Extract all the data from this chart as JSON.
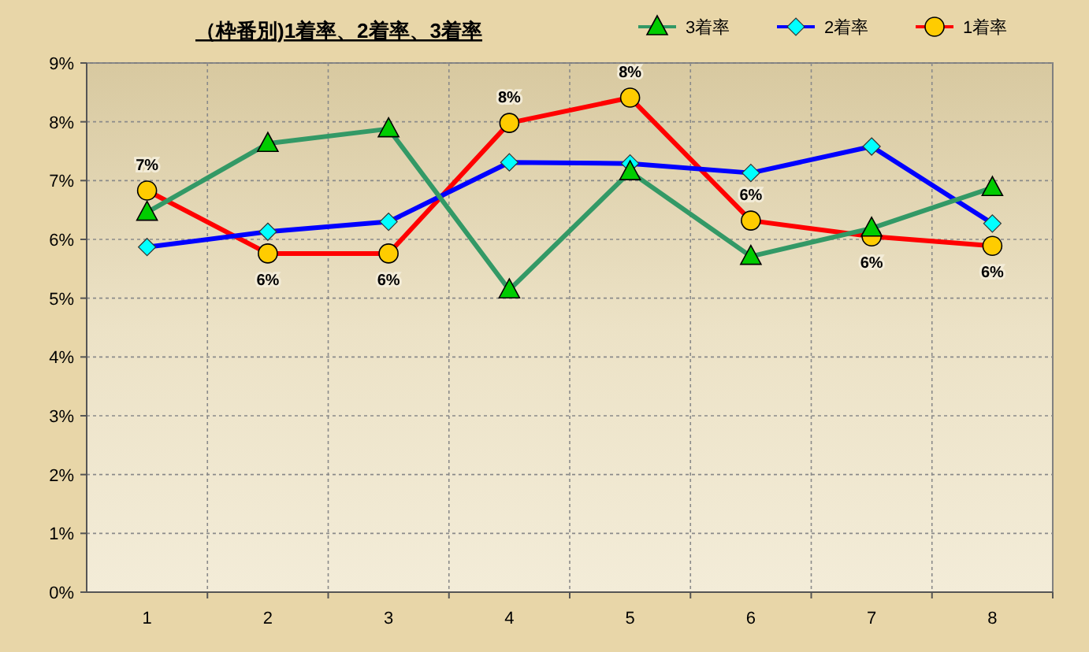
{
  "chart_data": {
    "type": "line",
    "title": "（枠番別)1着率、2着率、3着率",
    "categories": [
      "1",
      "2",
      "3",
      "4",
      "5",
      "6",
      "7",
      "8"
    ],
    "series": [
      {
        "name": "3着率",
        "color": "#339966",
        "marker": "triangle",
        "values": [
          6.46,
          7.63,
          7.88,
          5.14,
          7.15,
          5.71,
          6.19,
          6.88
        ]
      },
      {
        "name": "2着率",
        "color": "#0000ff",
        "marker": "diamond",
        "values": [
          5.87,
          6.13,
          6.3,
          7.31,
          7.29,
          7.13,
          7.58,
          6.27
        ]
      },
      {
        "name": "1着率",
        "color": "#ff0000",
        "marker": "circle",
        "values": [
          6.83,
          5.76,
          5.76,
          7.98,
          8.41,
          6.32,
          6.05,
          5.89
        ],
        "value_labels": [
          "7%",
          "6%",
          "6%",
          "8%",
          "8%",
          "6%",
          "6%",
          "6%"
        ]
      }
    ],
    "ylim": [
      0,
      9
    ],
    "yticks": [
      {
        "value": 0,
        "label": "0%"
      },
      {
        "value": 1,
        "label": "1%"
      },
      {
        "value": 2,
        "label": "2%"
      },
      {
        "value": 3,
        "label": "3%"
      },
      {
        "value": 4,
        "label": "4%"
      },
      {
        "value": 5,
        "label": "5%"
      },
      {
        "value": 6,
        "label": "6%"
      },
      {
        "value": 7,
        "label": "7%"
      },
      {
        "value": 8,
        "label": "8%"
      },
      {
        "value": 9,
        "label": "9%"
      }
    ],
    "grid": true,
    "legend": "top right"
  }
}
